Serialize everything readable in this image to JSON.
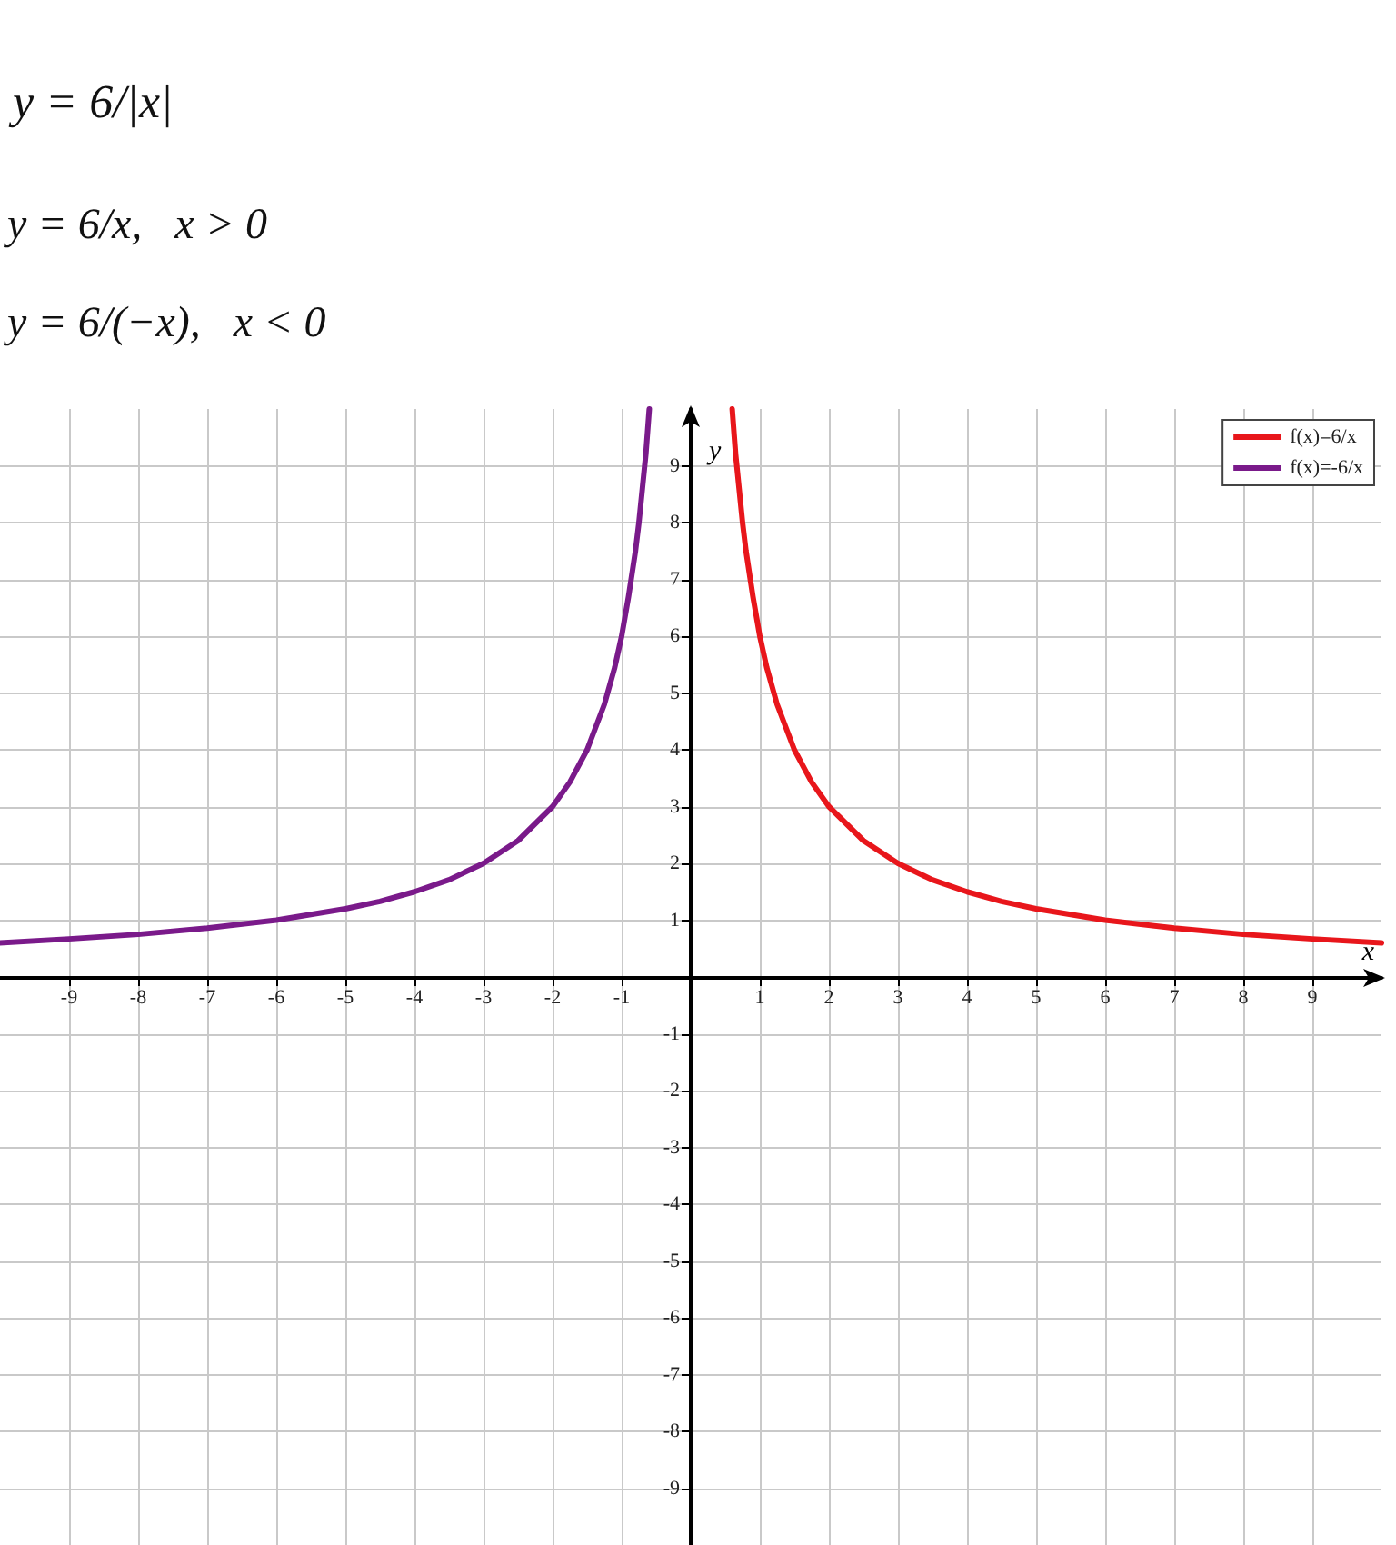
{
  "chart_data": {
    "type": "line",
    "title": "y = 6/|x|",
    "annotations": [
      "y = 6/x,   x > 0",
      "y = 6/(−x),   x < 0"
    ],
    "xlabel": "x",
    "ylabel": "y",
    "series": [
      {
        "name": "f(x)=6/x",
        "color": "#e8161b",
        "x": [
          0.6,
          0.65,
          0.7,
          0.75,
          0.8,
          0.9,
          1,
          1.1,
          1.25,
          1.5,
          1.75,
          2,
          2.5,
          3,
          3.5,
          4,
          4.5,
          5,
          6,
          7,
          8,
          9,
          10
        ],
        "values": [
          10,
          9.2,
          8.6,
          8,
          7.5,
          6.7,
          6,
          5.45,
          4.8,
          4,
          3.43,
          3,
          2.4,
          2,
          1.71,
          1.5,
          1.33,
          1.2,
          1,
          0.86,
          0.75,
          0.67,
          0.6
        ]
      },
      {
        "name": "f(x)=-6/x",
        "color": "#7a1a8a",
        "x": [
          -10,
          -9,
          -8,
          -7,
          -6,
          -5,
          -4.5,
          -4,
          -3.5,
          -3,
          -2.5,
          -2,
          -1.75,
          -1.5,
          -1.25,
          -1.1,
          -1,
          -0.9,
          -0.8,
          -0.75,
          -0.7,
          -0.65,
          -0.6
        ],
        "values": [
          0.6,
          0.67,
          0.75,
          0.86,
          1,
          1.2,
          1.33,
          1.5,
          1.71,
          2,
          2.4,
          3,
          3.43,
          4,
          4.8,
          5.45,
          6,
          6.7,
          7.5,
          8,
          8.6,
          9.2,
          10
        ]
      }
    ],
    "xlim": [
      -10,
      10
    ],
    "ylim": [
      -10,
      10
    ],
    "xticks": [
      -9,
      -8,
      -7,
      -6,
      -5,
      -4,
      -3,
      -2,
      -1,
      1,
      2,
      3,
      4,
      5,
      6,
      7,
      8,
      9
    ],
    "yticks": [
      -9,
      -8,
      -7,
      -6,
      -5,
      -4,
      -3,
      -2,
      -1,
      1,
      2,
      3,
      4,
      5,
      6,
      7,
      8,
      9
    ],
    "grid": true,
    "legend": "top right",
    "marker": "none",
    "line_style": "solid"
  }
}
